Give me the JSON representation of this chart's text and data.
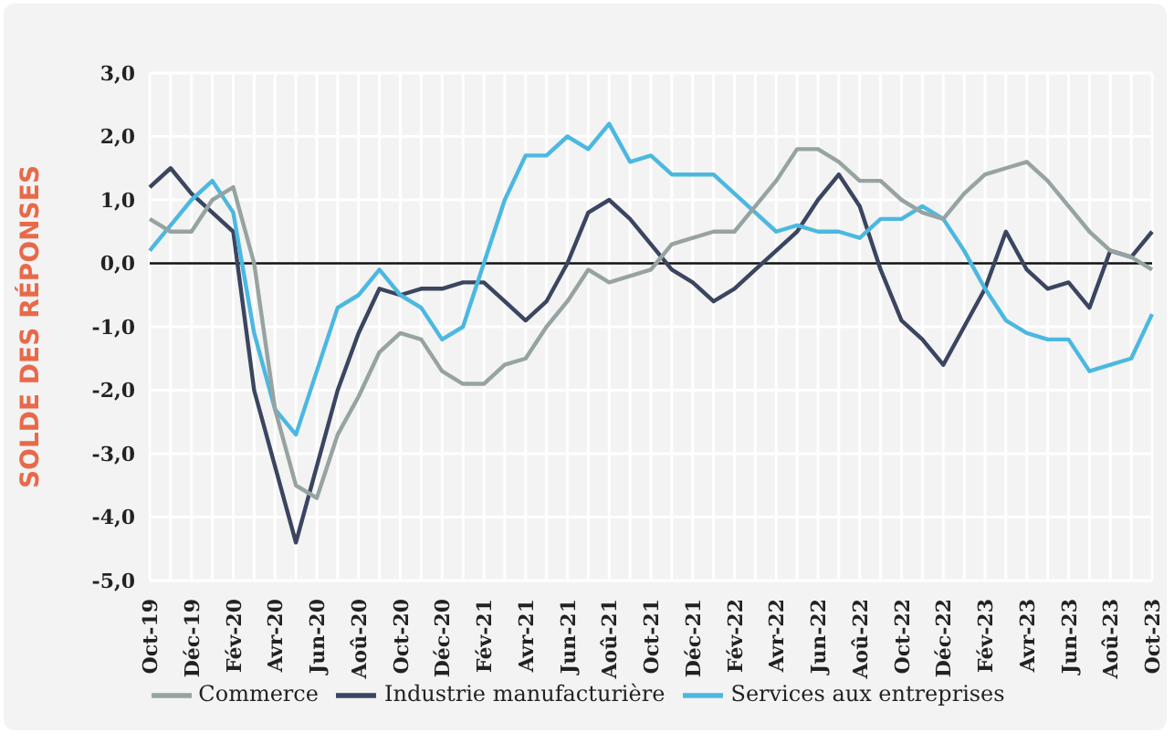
{
  "chart_data": {
    "type": "line",
    "ylabel": "SOLDE DES RÉPONSES",
    "categories": [
      "Oct-19",
      null,
      "Déc-19",
      null,
      "Fév-20",
      null,
      "Avr-20",
      null,
      "Jun-20",
      null,
      "Aoû-20",
      null,
      "Oct-20",
      null,
      "Déc-20",
      null,
      "Fév-21",
      null,
      "Avr-21",
      null,
      "Jun-21",
      null,
      "Aoû-21",
      null,
      "Oct-21",
      null,
      "Déc-21",
      null,
      "Fév-22",
      null,
      "Avr-22",
      null,
      "Jun-22",
      null,
      "Aoû-22",
      null,
      "Oct-22",
      null,
      "Déc-22",
      null,
      "Fév-23",
      null,
      "Avr-23",
      null,
      "Jun-23",
      null,
      "Aoû-23",
      null,
      "Oct-23"
    ],
    "series": [
      {
        "name": "Industrie manufacturière",
        "color": "#3b4560",
        "values": [
          1.2,
          1.5,
          1.1,
          0.8,
          0.5,
          -2.0,
          -3.2,
          -4.4,
          -3.2,
          -2.0,
          -1.1,
          -0.4,
          -0.5,
          -0.4,
          -0.4,
          -0.3,
          -0.3,
          -0.6,
          -0.9,
          -0.6,
          0.0,
          0.8,
          1.0,
          0.7,
          0.3,
          -0.1,
          -0.3,
          -0.6,
          -0.4,
          -0.1,
          0.2,
          0.5,
          1.0,
          1.4,
          0.9,
          -0.1,
          -0.9,
          -1.2,
          -1.6,
          -1.0,
          -0.4,
          0.5,
          -0.1,
          -0.4,
          -0.3,
          -0.7,
          0.2,
          0.1,
          0.5
        ]
      },
      {
        "name": "Services aux entreprises",
        "color": "#4cb8e0",
        "values": [
          0.2,
          0.6,
          1.0,
          1.3,
          0.8,
          -1.1,
          -2.3,
          -2.7,
          -1.7,
          -0.7,
          -0.5,
          -0.1,
          -0.5,
          -0.7,
          -1.2,
          -1.0,
          0.0,
          1.0,
          1.7,
          1.7,
          2.0,
          1.8,
          2.2,
          1.6,
          1.7,
          1.4,
          1.4,
          1.4,
          1.1,
          0.8,
          0.5,
          0.6,
          0.5,
          0.5,
          0.4,
          0.7,
          0.7,
          0.9,
          0.7,
          0.2,
          -0.4,
          -0.9,
          -1.1,
          -1.2,
          -1.2,
          -1.7,
          -1.6,
          -1.5,
          -0.8
        ]
      },
      {
        "name": "Commerce",
        "color": "#97a3a2",
        "values": [
          0.7,
          0.5,
          0.5,
          1.0,
          1.2,
          0.0,
          -2.3,
          -3.5,
          -3.7,
          -2.7,
          -2.1,
          -1.4,
          -1.1,
          -1.2,
          -1.7,
          -1.9,
          -1.9,
          -1.6,
          -1.5,
          -1.0,
          -0.6,
          -0.1,
          -0.3,
          -0.2,
          -0.1,
          0.3,
          0.4,
          0.5,
          0.5,
          0.9,
          1.3,
          1.8,
          1.8,
          1.6,
          1.3,
          1.3,
          1.0,
          0.8,
          0.7,
          1.1,
          1.4,
          1.5,
          1.6,
          1.3,
          0.9,
          0.5,
          0.2,
          0.1,
          -0.1
        ]
      }
    ],
    "ylim": [
      -5,
      3
    ],
    "yticks": [
      {
        "value": -5,
        "label": "-5,0"
      },
      {
        "value": -4,
        "label": "-4,0"
      },
      {
        "value": -3,
        "label": "-3,0"
      },
      {
        "value": -2,
        "label": "-2,0"
      },
      {
        "value": -1,
        "label": "-1,0"
      },
      {
        "value": 0,
        "label": "0,0"
      },
      {
        "value": 1,
        "label": "1,0"
      },
      {
        "value": 2,
        "label": "2,0"
      },
      {
        "value": 3,
        "label": "3,0"
      }
    ],
    "ref_lines": [
      {
        "axis": "y",
        "value": 0,
        "color": "#111111"
      }
    ],
    "grid": true,
    "legend": "bottom",
    "marker": "none",
    "line_style": "solid"
  }
}
